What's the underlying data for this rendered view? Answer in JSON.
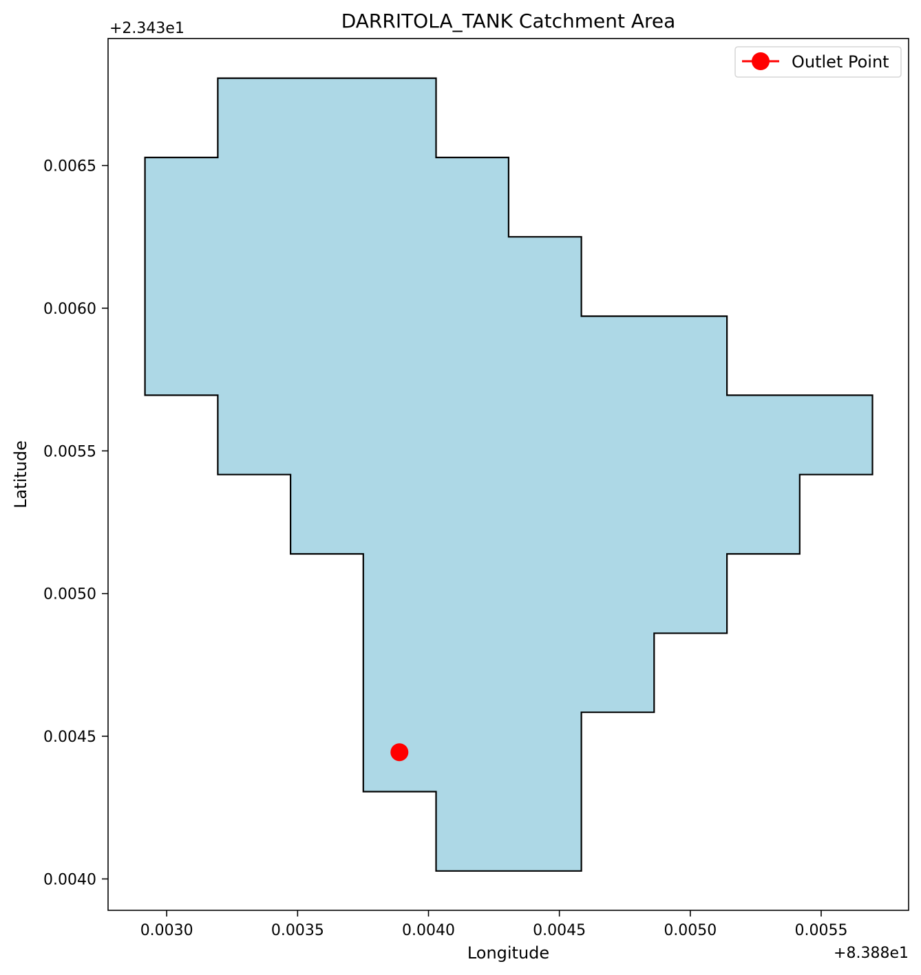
{
  "chart_data": {
    "type": "area",
    "title": "DARRITOLA_TANK Catchment Area",
    "xlabel": "Longitude",
    "ylabel": "Latitude",
    "x_offset_label": "+8.388e1",
    "y_offset_label": "+2.343e1",
    "x_ticks": [
      {
        "value": 0.003,
        "label": "0.0030"
      },
      {
        "value": 0.0035,
        "label": "0.0035"
      },
      {
        "value": 0.004,
        "label": "0.0040"
      },
      {
        "value": 0.0045,
        "label": "0.0045"
      },
      {
        "value": 0.005,
        "label": "0.0050"
      },
      {
        "value": 0.0055,
        "label": "0.0055"
      }
    ],
    "y_ticks": [
      {
        "value": 0.004,
        "label": "0.0040"
      },
      {
        "value": 0.0045,
        "label": "0.0045"
      },
      {
        "value": 0.005,
        "label": "0.0050"
      },
      {
        "value": 0.0055,
        "label": "0.0055"
      },
      {
        "value": 0.006,
        "label": "0.0060"
      },
      {
        "value": 0.0065,
        "label": "0.0065"
      }
    ],
    "xlim": [
      0.002776,
      0.005834
    ],
    "ylim": [
      0.00389,
      0.006945
    ],
    "grid": false,
    "legend_position": "top-right",
    "catchment": {
      "fill_color": "#add8e6",
      "edge_color": "#000000",
      "polygon": [
        [
          0.003195,
          0.006806
        ],
        [
          0.004029,
          0.006806
        ],
        [
          0.004029,
          0.006528
        ],
        [
          0.004306,
          0.006528
        ],
        [
          0.004306,
          0.00625
        ],
        [
          0.004584,
          0.00625
        ],
        [
          0.004584,
          0.005972
        ],
        [
          0.00514,
          0.005972
        ],
        [
          0.00514,
          0.005695
        ],
        [
          0.005696,
          0.005695
        ],
        [
          0.005696,
          0.005417
        ],
        [
          0.005418,
          0.005417
        ],
        [
          0.005418,
          0.005139
        ],
        [
          0.00514,
          0.005139
        ],
        [
          0.00514,
          0.004861
        ],
        [
          0.004862,
          0.004861
        ],
        [
          0.004862,
          0.004584
        ],
        [
          0.004584,
          0.004584
        ],
        [
          0.004584,
          0.004028
        ],
        [
          0.004029,
          0.004028
        ],
        [
          0.004029,
          0.004306
        ],
        [
          0.003751,
          0.004306
        ],
        [
          0.003751,
          0.005139
        ],
        [
          0.003473,
          0.005139
        ],
        [
          0.003473,
          0.005417
        ],
        [
          0.003195,
          0.005417
        ],
        [
          0.003195,
          0.005695
        ],
        [
          0.002917,
          0.005695
        ],
        [
          0.002917,
          0.006528
        ],
        [
          0.003195,
          0.006528
        ]
      ]
    },
    "series": [
      {
        "name": "Outlet Point",
        "color": "#ff0000",
        "marker": "circle",
        "x": [
          0.003889
        ],
        "y": [
          0.004444
        ]
      }
    ]
  }
}
